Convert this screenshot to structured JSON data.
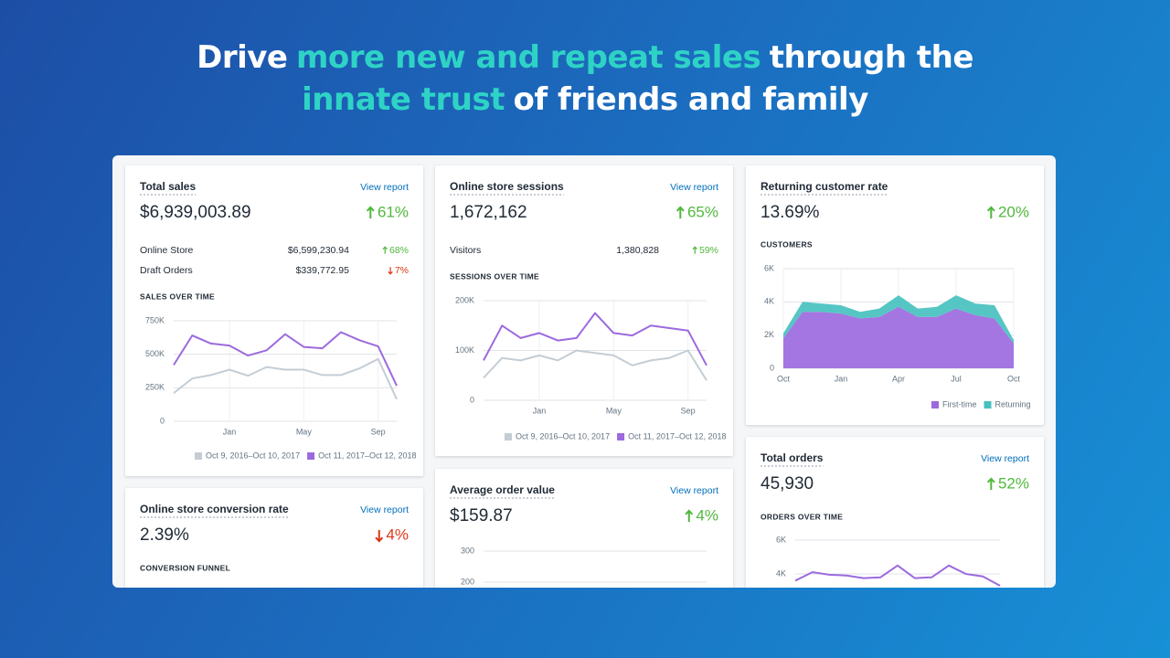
{
  "headline": {
    "lines": [
      [
        {
          "text": "Drive",
          "highlight": false
        },
        {
          "text": "more new and repeat sales",
          "highlight": true
        },
        {
          "text": "through the",
          "highlight": false
        }
      ],
      [
        {
          "text": "innate trust",
          "highlight": true
        },
        {
          "text": "of friends and family",
          "highlight": false
        }
      ]
    ]
  },
  "cards": [
    {
      "title": "Total sales",
      "link": "View report",
      "value": "$6,939,003.89",
      "change": "61%",
      "direction": "up",
      "rows": [
        {
          "label": "Online Store",
          "value": "$6,599,230.94",
          "change": "68%",
          "direction": "up"
        },
        {
          "label": "Draft Orders",
          "value": "$339,772.95",
          "change": "7%",
          "direction": "down"
        }
      ],
      "chart": {
        "type": "line",
        "title": "SALES OVER TIME",
        "categories": [
          null,
          null,
          null,
          "Jan",
          null,
          null,
          null,
          "May",
          null,
          null,
          null,
          "Sep",
          null
        ],
        "series": [
          {
            "name": "Oct 9, 2016–Oct 10, 2017",
            "color": "#c4cdd5",
            "values": [
              210000,
              320000,
              345000,
              385000,
              340000,
              405000,
              385000,
              385000,
              345000,
              345000,
              395000,
              465000,
              165000
            ]
          },
          {
            "name": "Oct 11, 2017–Oct 12, 2018",
            "color": "#9c6ade",
            "values": [
              420000,
              640000,
              580000,
              565000,
              490000,
              530000,
              650000,
              555000,
              545000,
              665000,
              605000,
              560000,
              265000
            ]
          }
        ],
        "ylim": [
          0,
          750000
        ],
        "yticks": [
          0,
          {
            "value": 250000,
            "label": "250K"
          },
          {
            "value": 500000,
            "label": "500K"
          },
          {
            "value": 750000,
            "label": "750K"
          }
        ]
      }
    },
    {
      "title": "Online store sessions",
      "link": "View report",
      "value": "1,672,162",
      "change": "65%",
      "direction": "up",
      "rows": [
        {
          "label": "Visitors",
          "value": "1,380,828",
          "change": "59%",
          "direction": "up"
        }
      ],
      "chart": {
        "type": "line",
        "title": "SESSIONS OVER TIME",
        "categories": [
          null,
          null,
          null,
          "Jan",
          null,
          null,
          null,
          "May",
          null,
          null,
          null,
          "Sep",
          null
        ],
        "series": [
          {
            "name": "Oct 9, 2016–Oct 10, 2017",
            "color": "#c4cdd5",
            "values": [
              45000,
              85000,
              80000,
              90000,
              80000,
              100000,
              95000,
              90000,
              70000,
              80000,
              85000,
              100000,
              40000
            ]
          },
          {
            "name": "Oct 11, 2017–Oct 12, 2018",
            "color": "#9c6ade",
            "values": [
              80000,
              150000,
              125000,
              135000,
              120000,
              125000,
              175000,
              135000,
              130000,
              150000,
              145000,
              140000,
              70000
            ]
          }
        ],
        "ylim": [
          0,
          200000
        ],
        "yticks": [
          0,
          {
            "value": 100000,
            "label": "100K"
          },
          {
            "value": 200000,
            "label": "200K"
          }
        ]
      }
    },
    {
      "title": "Returning customer rate",
      "value": "13.69%",
      "change": "20%",
      "direction": "up",
      "chart": {
        "type": "area",
        "stacked": true,
        "title": "CUSTOMERS",
        "categories": [
          "Oct",
          null,
          null,
          "Jan",
          null,
          null,
          "Apr",
          null,
          null,
          "Jul",
          null,
          null,
          "Oct"
        ],
        "series": [
          {
            "name": "First-time",
            "color": "#9c6ade",
            "values": [
              1800,
              3400,
              3400,
              3300,
              3000,
              3100,
              3700,
              3100,
              3100,
              3600,
              3200,
              3000,
              1500
            ]
          },
          {
            "name": "Returning",
            "color": "#47c1bf",
            "values": [
              300,
              600,
              500,
              500,
              400,
              500,
              700,
              500,
              600,
              800,
              700,
              800,
              200
            ]
          }
        ],
        "ylim": [
          0,
          6000
        ],
        "yticks": [
          0,
          {
            "value": 2000,
            "label": "2K"
          },
          {
            "value": 4000,
            "label": "4K"
          },
          {
            "value": 6000,
            "label": "6K"
          }
        ]
      }
    },
    {
      "title": "Total orders",
      "link": "View report",
      "value": "45,930",
      "change": "52%",
      "direction": "up",
      "chart": {
        "type": "line",
        "title": "ORDERS OVER TIME",
        "categories": [
          null,
          null,
          null,
          null,
          null,
          null,
          null,
          null,
          null,
          null,
          null,
          null,
          null
        ],
        "series": [
          {
            "color": "#9c6ade",
            "values": [
              3600,
              4100,
              3950,
              3900,
              3750,
              3800,
              4500,
              3750,
              3800,
              4500,
              4000,
              3850,
              3300
            ]
          }
        ],
        "ylim": [
          0,
          6000
        ],
        "yticks": [
          {
            "value": 4000,
            "label": "4K"
          },
          {
            "value": 6000,
            "label": "6K"
          }
        ]
      }
    },
    {
      "title": "Online store conversion rate",
      "link": "View report",
      "value": "2.39%",
      "change": "4%",
      "direction": "down",
      "chart": {
        "title": "CONVERSION FUNNEL"
      }
    },
    {
      "title": "Average order value",
      "link": "View report",
      "value": "$159.87",
      "change": "4%",
      "direction": "up",
      "chart": {
        "type": "line",
        "ylim": [
          0,
          300
        ],
        "yticks": [
          200,
          300
        ]
      }
    }
  ]
}
